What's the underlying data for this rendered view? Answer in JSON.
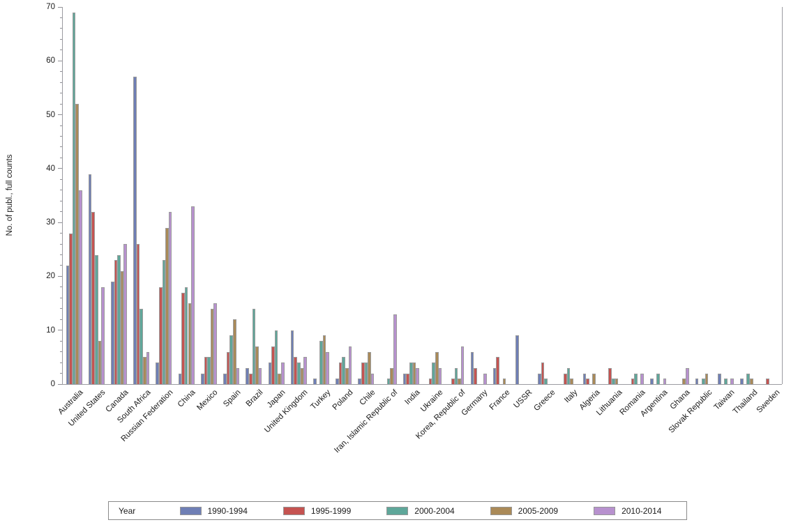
{
  "y_axis": {
    "label": "No. of publ., full counts",
    "ticks": [
      0,
      10,
      20,
      30,
      40,
      50,
      60,
      70
    ],
    "minor_step": 2,
    "max": 70
  },
  "legend": {
    "title": "Year"
  },
  "chart_data": {
    "type": "bar",
    "title": "",
    "xlabel": "",
    "ylabel": "No. of publ., full counts",
    "ylim": [
      0,
      70
    ],
    "ytick_interval": 10,
    "grid": false,
    "legend_position": "bottom",
    "legend_title": "Year",
    "categories": [
      "Australia",
      "United States",
      "Canada",
      "South Africa",
      "Russian Federation",
      "China",
      "Mexico",
      "Spain",
      "Brazil",
      "Japan",
      "United Kingdom",
      "Turkey",
      "Poland",
      "Chile",
      "Iran, Islamic Republic of",
      "India",
      "Ukraine",
      "Korea, Republic of",
      "Germany",
      "France",
      "USSR",
      "Greece",
      "Italy",
      "Algeria",
      "Lithuania",
      "Romania",
      "Argentina",
      "Ghana",
      "Slovak Republic",
      "Taiwan",
      "Thailand",
      "Sweden"
    ],
    "series": [
      {
        "name": "1990-1994",
        "color": "#6F7FB5",
        "values": [
          22,
          39,
          19,
          57,
          4,
          2,
          2,
          2,
          3,
          4,
          10,
          1,
          1,
          1,
          0,
          2,
          0,
          0,
          6,
          3,
          9,
          2,
          0,
          2,
          0,
          0,
          1,
          0,
          1,
          2,
          1,
          0
        ]
      },
      {
        "name": "1995-1999",
        "color": "#C55351",
        "values": [
          28,
          32,
          23,
          26,
          18,
          17,
          5,
          6,
          2,
          7,
          5,
          0,
          4,
          4,
          0,
          2,
          1,
          1,
          3,
          5,
          0,
          4,
          2,
          1,
          3,
          1,
          0,
          0,
          0,
          0,
          0,
          1
        ]
      },
      {
        "name": "2000-2004",
        "color": "#5FA79A",
        "values": [
          69,
          24,
          24,
          14,
          23,
          18,
          5,
          9,
          14,
          10,
          4,
          8,
          5,
          4,
          1,
          4,
          4,
          3,
          0,
          0,
          0,
          1,
          3,
          0,
          1,
          2,
          2,
          0,
          1,
          1,
          2,
          0
        ]
      },
      {
        "name": "2005-2009",
        "color": "#AA8A58",
        "values": [
          52,
          8,
          21,
          5,
          29,
          15,
          14,
          12,
          7,
          2,
          3,
          9,
          3,
          6,
          3,
          4,
          6,
          1,
          0,
          1,
          0,
          0,
          1,
          2,
          1,
          0,
          0,
          1,
          2,
          0,
          1,
          0
        ]
      },
      {
        "name": "2010-2014",
        "color": "#B791CE",
        "values": [
          36,
          18,
          26,
          6,
          32,
          33,
          15,
          3,
          3,
          4,
          5,
          6,
          7,
          2,
          13,
          3,
          3,
          7,
          2,
          0,
          0,
          0,
          0,
          0,
          0,
          2,
          1,
          3,
          0,
          1,
          0,
          0
        ]
      }
    ]
  }
}
